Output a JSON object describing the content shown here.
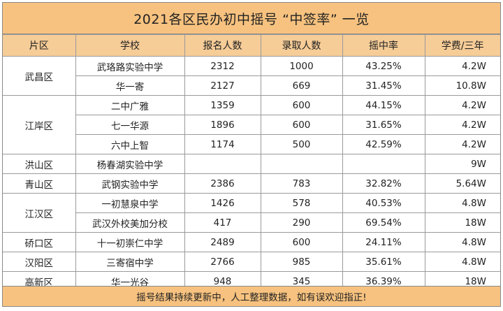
{
  "title": "2021各区民办初中摇号 “中签率” 一览",
  "headers": [
    "片区",
    "学校",
    "报名人数",
    "录取人数",
    "摇中率",
    "学费/三年"
  ],
  "rows": [
    {
      "district": "武昌区",
      "school": "武珞路实验中学",
      "applicants": "2312",
      "admitted": "1000",
      "rate": "43.25%",
      "fee": "4.2W"
    },
    {
      "district": "",
      "school": "华一寄",
      "applicants": "2127",
      "admitted": "669",
      "rate": "31.45%",
      "fee": "10.8W"
    },
    {
      "district": "江岸区",
      "school": "二中广雅",
      "applicants": "1359",
      "admitted": "600",
      "rate": "44.15%",
      "fee": "4.2W"
    },
    {
      "district": "",
      "school": "七一华源",
      "applicants": "1896",
      "admitted": "600",
      "rate": "31.65%",
      "fee": "4.2W"
    },
    {
      "district": "",
      "school": "六中上智",
      "applicants": "1174",
      "admitted": "500",
      "rate": "42.59%",
      "fee": "4.2W"
    },
    {
      "district": "洪山区",
      "school": "杨春湖实验中学",
      "applicants": "",
      "admitted": "",
      "rate": "",
      "fee": "9W"
    },
    {
      "district": "青山区",
      "school": "武钢实验中学",
      "applicants": "2386",
      "admitted": "783",
      "rate": "32.82%",
      "fee": "5.64W"
    },
    {
      "district": "江汉区",
      "school": "一初慧泉中学",
      "applicants": "1426",
      "admitted": "578",
      "rate": "40.53%",
      "fee": "4.8W"
    },
    {
      "district": "",
      "school": "武汉外校美加分校",
      "applicants": "417",
      "admitted": "290",
      "rate": "69.54%",
      "fee": "18W"
    },
    {
      "district": "硚口区",
      "school": "十一初崇仁中学",
      "applicants": "2489",
      "admitted": "600",
      "rate": "24.11%",
      "fee": "4.8W"
    },
    {
      "district": "汉阳区",
      "school": "三寄宿中学",
      "applicants": "2766",
      "admitted": "985",
      "rate": "35.61%",
      "fee": "4.8W"
    },
    {
      "district": "高新区",
      "school": "华一光谷",
      "applicants": "948",
      "admitted": "345",
      "rate": "36.39%",
      "fee": "18W"
    }
  ],
  "footer": "摇号结果持续更新中，人工整理数据，如有误欢迎指正!"
}
